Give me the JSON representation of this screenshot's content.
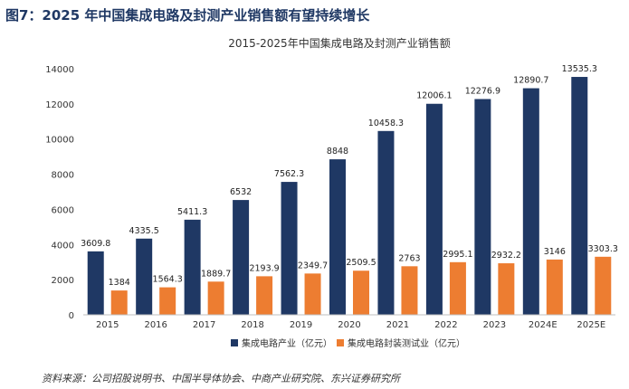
{
  "figure_label": "图7：2025 年中国集成电路及封测产业销售额有望持续增长",
  "source_note": "资料来源：公司招股说明书、中国半导体协会、中商产业研究院、东兴证券研究所",
  "colors": {
    "series_1": "#1f3864",
    "series_2": "#ed7d31",
    "title_accent": "#1f3864"
  },
  "chart_data": {
    "type": "bar",
    "title": "2015-2025年中国集成电路及封测产业销售额",
    "categories": [
      "2015",
      "2016",
      "2017",
      "2018",
      "2019",
      "2020",
      "2021",
      "2022",
      "2023",
      "2024E",
      "2025E"
    ],
    "series": [
      {
        "name": "集成电路产业（亿元）",
        "values": [
          3609.8,
          4335.5,
          5411.3,
          6532,
          7562.3,
          8848,
          10458.3,
          12006.1,
          12276.9,
          12890.7,
          13535.3
        ]
      },
      {
        "name": "集成电路封装测试业（亿元）",
        "values": [
          1384,
          1564.3,
          1889.7,
          2193.9,
          2349.7,
          2509.5,
          2763,
          2995.1,
          2932.2,
          3146,
          3303.3
        ]
      }
    ],
    "ylim": [
      0,
      14000
    ],
    "yticks": [
      0,
      2000,
      4000,
      6000,
      8000,
      10000,
      12000,
      14000
    ],
    "legend_position": "bottom",
    "grid": false
  }
}
